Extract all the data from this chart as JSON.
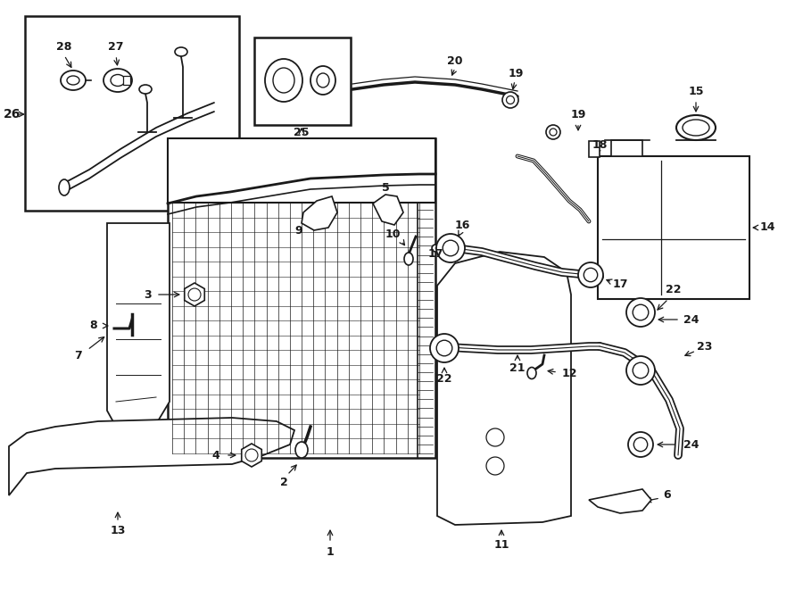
{
  "bg_color": "#ffffff",
  "line_color": "#1a1a1a",
  "fig_width": 9.0,
  "fig_height": 6.61,
  "dpi": 100,
  "lw_main": 1.2,
  "lw_thick": 2.0,
  "lw_hose": 4.0
}
